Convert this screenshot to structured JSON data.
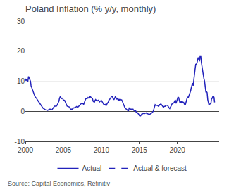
{
  "chart_data": {
    "type": "line",
    "title": "Poland Inflation (% y/y, monthly)",
    "source": "Source: Capital Economics, Refinitiv",
    "x": [
      2000.0,
      2000.08,
      2000.17,
      2000.25,
      2000.33,
      2000.42,
      2000.5,
      2000.58,
      2000.67,
      2000.75,
      2000.83,
      2000.92,
      2001.0,
      2001.08,
      2001.17,
      2001.25,
      2001.33,
      2001.42,
      2001.5,
      2001.58,
      2001.67,
      2001.75,
      2001.83,
      2001.92,
      2002.0,
      2002.08,
      2002.17,
      2002.25,
      2002.33,
      2002.42,
      2002.5,
      2002.58,
      2002.67,
      2002.75,
      2002.83,
      2002.92,
      2003.0,
      2003.08,
      2003.17,
      2003.25,
      2003.33,
      2003.42,
      2003.5,
      2003.58,
      2003.67,
      2003.75,
      2003.83,
      2003.92,
      2004.0,
      2004.08,
      2004.17,
      2004.25,
      2004.33,
      2004.42,
      2004.5,
      2004.58,
      2004.67,
      2004.75,
      2004.83,
      2004.92,
      2005.0,
      2005.08,
      2005.17,
      2005.25,
      2005.33,
      2005.42,
      2005.5,
      2005.58,
      2005.67,
      2005.75,
      2005.83,
      2005.92,
      2006.0,
      2006.08,
      2006.17,
      2006.25,
      2006.33,
      2006.42,
      2006.5,
      2006.58,
      2006.67,
      2006.75,
      2006.83,
      2006.92,
      2007.0,
      2007.08,
      2007.17,
      2007.25,
      2007.33,
      2007.42,
      2007.5,
      2007.58,
      2007.67,
      2007.75,
      2007.83,
      2007.92,
      2008.0,
      2008.08,
      2008.17,
      2008.25,
      2008.33,
      2008.42,
      2008.5,
      2008.58,
      2008.67,
      2008.75,
      2008.83,
      2008.92,
      2009.0,
      2009.08,
      2009.17,
      2009.25,
      2009.33,
      2009.42,
      2009.5,
      2009.58,
      2009.67,
      2009.75,
      2009.83,
      2009.92,
      2010.0,
      2010.08,
      2010.17,
      2010.25,
      2010.33,
      2010.42,
      2010.5,
      2010.58,
      2010.67,
      2010.75,
      2010.83,
      2010.92,
      2011.0,
      2011.08,
      2011.17,
      2011.25,
      2011.33,
      2011.42,
      2011.5,
      2011.58,
      2011.67,
      2011.75,
      2011.83,
      2011.92,
      2012.0,
      2012.08,
      2012.17,
      2012.25,
      2012.33,
      2012.42,
      2012.5,
      2012.58,
      2012.67,
      2012.75,
      2012.83,
      2012.92,
      2013.0,
      2013.08,
      2013.17,
      2013.25,
      2013.33,
      2013.42,
      2013.5,
      2013.58,
      2013.67,
      2013.75,
      2013.83,
      2013.92,
      2014.0,
      2014.08,
      2014.17,
      2014.25,
      2014.33,
      2014.42,
      2014.5,
      2014.58,
      2014.67,
      2014.75,
      2014.83,
      2014.92,
      2015.0,
      2015.08,
      2015.17,
      2015.25,
      2015.33,
      2015.42,
      2015.5,
      2015.58,
      2015.67,
      2015.75,
      2015.83,
      2015.92,
      2016.0,
      2016.08,
      2016.17,
      2016.25,
      2016.33,
      2016.42,
      2016.5,
      2016.58,
      2016.67,
      2016.75,
      2016.83,
      2016.92,
      2017.0,
      2017.08,
      2017.17,
      2017.25,
      2017.33,
      2017.42,
      2017.5,
      2017.58,
      2017.67,
      2017.75,
      2017.83,
      2017.92,
      2018.0,
      2018.08,
      2018.17,
      2018.25,
      2018.33,
      2018.42,
      2018.5,
      2018.58,
      2018.67,
      2018.75,
      2018.83,
      2018.92,
      2019.0,
      2019.08,
      2019.17,
      2019.25,
      2019.33,
      2019.42,
      2019.5,
      2019.58,
      2019.67,
      2019.75,
      2019.83,
      2019.92,
      2020.0,
      2020.08,
      2020.17,
      2020.25,
      2020.33,
      2020.42,
      2020.5,
      2020.58,
      2020.67,
      2020.75,
      2020.83,
      2020.92,
      2021.0,
      2021.08,
      2021.17,
      2021.25,
      2021.33,
      2021.42,
      2021.5,
      2021.58,
      2021.67,
      2021.75,
      2021.83,
      2021.92,
      2022.0,
      2022.08,
      2022.17,
      2022.25,
      2022.33,
      2022.42,
      2022.5,
      2022.58,
      2022.67,
      2022.75,
      2022.83,
      2022.92,
      2023.0,
      2023.08,
      2023.17,
      2023.25,
      2023.33,
      2023.42,
      2023.5,
      2023.58,
      2023.67,
      2023.75,
      2023.83,
      2023.92,
      2024.0,
      2024.08,
      2024.17,
      2024.25,
      2024.33,
      2024.42,
      2024.5,
      2024.58,
      2024.67,
      2024.75,
      2024.83,
      2024.92,
      2025.0
    ],
    "series": [
      {
        "name": "Actual",
        "color": "#2222bb",
        "line_style": "solid",
        "values": [
          10.2,
          10.6,
          10.3,
          10.1,
          10.0,
          11.6,
          11.0,
          10.5,
          10.0,
          8.5,
          7.9,
          7.3,
          6.8,
          6.4,
          5.7,
          5.0,
          4.7,
          4.5,
          4.2,
          3.8,
          3.5,
          3.1,
          2.7,
          2.5,
          2.3,
          2.0,
          1.7,
          1.3,
          1.0,
          0.8,
          0.7,
          0.6,
          0.5,
          0.4,
          0.4,
          0.3,
          0.4,
          0.5,
          0.6,
          0.7,
          0.5,
          0.5,
          0.5,
          0.8,
          1.0,
          1.4,
          1.7,
          1.7,
          1.6,
          1.7,
          2.0,
          2.5,
          3.0,
          3.4,
          4.4,
          4.8,
          4.6,
          4.2,
          4.3,
          4.4,
          3.5,
          3.7,
          3.6,
          3.1,
          2.5,
          1.9,
          1.7,
          1.6,
          1.5,
          1.6,
          1.4,
          0.7,
          0.7,
          0.6,
          0.7,
          0.9,
          1.1,
          1.2,
          1.1,
          1.3,
          1.4,
          1.6,
          1.4,
          1.4,
          1.6,
          1.9,
          2.1,
          2.3,
          2.5,
          2.6,
          2.6,
          2.5,
          2.3,
          2.8,
          3.6,
          4.0,
          4.3,
          4.2,
          4.3,
          4.6,
          4.4,
          4.4,
          4.8,
          4.8,
          4.5,
          4.3,
          4.2,
          3.3,
          3.1,
          3.0,
          3.6,
          3.9,
          3.6,
          3.4,
          3.5,
          3.7,
          3.5,
          3.1,
          3.3,
          3.5,
          3.6,
          3.3,
          2.9,
          2.4,
          2.2,
          2.2,
          2.3,
          2.0,
          2.0,
          2.5,
          2.7,
          3.1,
          3.8,
          3.9,
          4.3,
          4.5,
          5.0,
          5.0,
          4.6,
          3.9,
          3.9,
          4.3,
          4.8,
          4.6,
          4.1,
          4.3,
          3.9,
          4.0,
          3.6,
          4.0,
          4.0,
          3.8,
          3.8,
          3.4,
          2.8,
          2.4,
          1.7,
          1.3,
          1.0,
          0.8,
          0.5,
          0.2,
          0.2,
          0.2,
          1.1,
          1.0,
          0.6,
          0.7,
          0.5,
          0.7,
          0.7,
          0.3,
          0.2,
          0.2,
          0.3,
          -0.3,
          -0.3,
          -0.5,
          -0.6,
          -1.0,
          -1.4,
          -1.6,
          -1.5,
          -1.1,
          -0.9,
          -0.9,
          -0.8,
          -0.6,
          -0.8,
          -0.7,
          -0.5,
          -0.5,
          -0.9,
          -0.8,
          -0.9,
          -1.1,
          -1.1,
          -0.9,
          -0.8,
          -0.8,
          -0.5,
          -0.2,
          0.0,
          0.8,
          1.8,
          2.2,
          2.0,
          2.0,
          1.9,
          1.9,
          1.7,
          1.8,
          2.2,
          2.2,
          2.5,
          2.1,
          1.9,
          1.4,
          1.3,
          1.6,
          1.7,
          1.7,
          2.0,
          2.0,
          2.0,
          1.8,
          1.3,
          1.1,
          0.9,
          1.2,
          1.7,
          2.2,
          2.6,
          2.6,
          2.8,
          2.9,
          3.5,
          3.6,
          2.6,
          3.4,
          4.4,
          4.7,
          4.6,
          3.4,
          2.9,
          2.9,
          3.3,
          2.9,
          3.2,
          3.0,
          3.0,
          2.4,
          2.6,
          2.4,
          3.2,
          4.3,
          4.8,
          4.4,
          5.0,
          5.4,
          5.8,
          6.8,
          7.8,
          8.6,
          9.4,
          8.5,
          11.0,
          12.3,
          13.9,
          15.6,
          15.6,
          16.1,
          17.2,
          17.9,
          17.4,
          16.6,
          18.4,
          18.4,
          16.1,
          14.7,
          13.0,
          11.5,
          10.8,
          10.1,
          8.2,
          6.5,
          6.6,
          6.2,
          3.9,
          2.8,
          2.0,
          2.4,
          2.5,
          2.6,
          4.2,
          4.3,
          4.9,
          5.0,
          null,
          null,
          null
        ]
      },
      {
        "name": "Actual & forecast",
        "color": "#2222bb",
        "line_style": "dashed",
        "values": [
          null,
          null,
          null,
          null,
          null,
          null,
          null,
          null,
          null,
          null,
          null,
          null,
          null,
          null,
          null,
          null,
          null,
          null,
          null,
          null,
          null,
          null,
          null,
          null,
          null,
          null,
          null,
          null,
          null,
          null,
          null,
          null,
          null,
          null,
          null,
          null,
          null,
          null,
          null,
          null,
          null,
          null,
          null,
          null,
          null,
          null,
          null,
          null,
          null,
          null,
          null,
          null,
          null,
          null,
          null,
          null,
          null,
          null,
          null,
          null,
          null,
          null,
          null,
          null,
          null,
          null,
          null,
          null,
          null,
          null,
          null,
          null,
          null,
          null,
          null,
          null,
          null,
          null,
          null,
          null,
          null,
          null,
          null,
          null,
          null,
          null,
          null,
          null,
          null,
          null,
          null,
          null,
          null,
          null,
          null,
          null,
          null,
          null,
          null,
          null,
          null,
          null,
          null,
          null,
          null,
          null,
          null,
          null,
          null,
          null,
          null,
          null,
          null,
          null,
          null,
          null,
          null,
          null,
          null,
          null,
          null,
          null,
          null,
          null,
          null,
          null,
          null,
          null,
          null,
          null,
          null,
          null,
          null,
          null,
          null,
          null,
          null,
          null,
          null,
          null,
          null,
          null,
          null,
          null,
          null,
          null,
          null,
          null,
          null,
          null,
          null,
          null,
          null,
          null,
          null,
          null,
          null,
          null,
          null,
          null,
          null,
          null,
          null,
          null,
          null,
          null,
          null,
          null,
          null,
          null,
          null,
          null,
          null,
          null,
          null,
          null,
          null,
          null,
          null,
          null,
          null,
          null,
          null,
          null,
          null,
          null,
          null,
          null,
          null,
          null,
          null,
          null,
          null,
          null,
          null,
          null,
          null,
          null,
          null,
          null,
          null,
          null,
          null,
          null,
          null,
          null,
          null,
          null,
          null,
          null,
          null,
          null,
          null,
          null,
          null,
          null,
          null,
          null,
          null,
          null,
          null,
          null,
          null,
          null,
          null,
          null,
          null,
          null,
          null,
          null,
          null,
          null,
          null,
          null,
          null,
          null,
          null,
          null,
          null,
          null,
          null,
          null,
          null,
          null,
          null,
          null,
          null,
          null,
          null,
          null,
          null,
          null,
          null,
          null,
          null,
          null,
          null,
          null,
          null,
          null,
          null,
          null,
          null,
          null,
          null,
          null,
          null,
          null,
          null,
          null,
          null,
          null,
          null,
          null,
          null,
          null,
          null,
          null,
          null,
          null,
          null,
          null,
          null,
          null,
          null,
          null,
          null,
          null,
          null,
          null,
          null,
          null,
          null,
          null,
          null,
          null,
          null,
          5.0,
          4.6,
          2.5,
          2.5
        ]
      }
    ],
    "xlim": [
      2000.0,
      2025.5
    ],
    "xticks": [
      2000,
      2005,
      2010,
      2015,
      2020
    ],
    "ylim": [
      -10,
      30
    ],
    "yticks": [
      -10,
      0,
      10,
      20,
      30
    ],
    "grid": "y",
    "legend": "bottom"
  }
}
